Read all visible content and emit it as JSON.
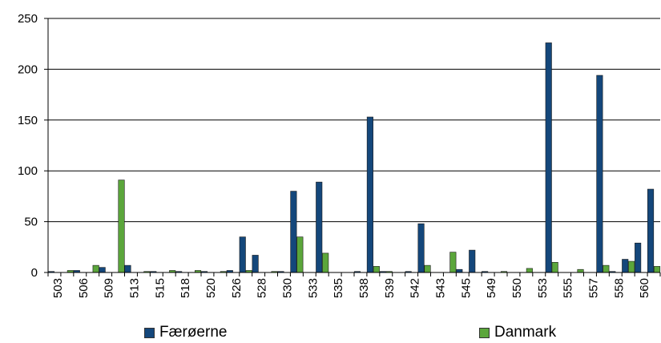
{
  "chart_data": {
    "type": "bar",
    "categories": [
      "503",
      "506",
      "509",
      "513",
      "515",
      "518",
      "520",
      "526",
      "528",
      "530",
      "533",
      "535",
      "538",
      "539",
      "542",
      "543",
      "545",
      "549",
      "550",
      "553",
      "555",
      "557",
      "558",
      "560"
    ],
    "series": [
      {
        "name": "Færøerne",
        "color": "#14477b",
        "values": [
          0,
          0,
          0,
          0,
          0,
          0,
          0,
          35,
          0,
          80,
          89,
          0,
          153,
          0,
          48,
          0,
          22,
          0,
          0,
          226,
          0,
          194,
          13,
          82
        ],
        "pre_values": [
          1,
          2,
          5,
          7,
          1,
          1,
          1,
          2,
          17,
          1,
          0,
          0,
          1,
          1,
          1,
          0,
          3,
          1,
          0,
          0,
          0,
          0,
          1,
          29
        ]
      },
      {
        "name": "Danmark",
        "color": "#5ba63b",
        "values": [
          2,
          7,
          91,
          1,
          2,
          2,
          1,
          2,
          1,
          35,
          19,
          0,
          6,
          0,
          7,
          20,
          0,
          1,
          4,
          10,
          3,
          7,
          11,
          6
        ],
        "pre_values": [
          0,
          0,
          0,
          0,
          0,
          0,
          0,
          0,
          0,
          0,
          0,
          0,
          0,
          1,
          0,
          0,
          0,
          0,
          0,
          0,
          0,
          0,
          0,
          0
        ]
      }
    ],
    "ylim": [
      0,
      250
    ],
    "yticks": [
      0,
      50,
      100,
      150,
      200,
      250
    ],
    "grid": true,
    "legend_position": "bottom"
  }
}
